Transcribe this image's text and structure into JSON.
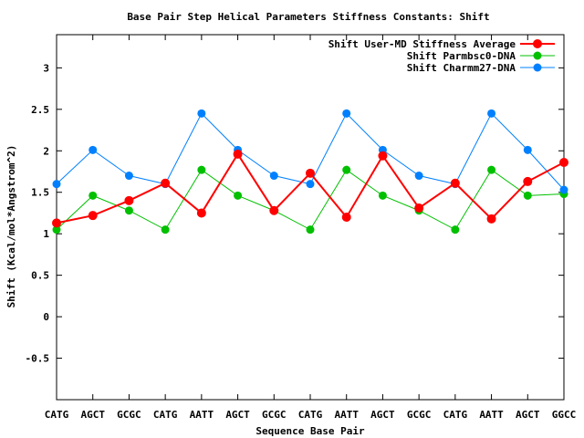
{
  "chart_data": {
    "type": "line",
    "title": "Base Pair Step Helical Parameters Stiffness Constants: Shift",
    "xlabel": "Sequence Base Pair",
    "ylabel": "Shift (Kcal/mol*Angstrom^2)",
    "categories": [
      "CATG",
      "AGCT",
      "GCGC",
      "CATG",
      "AATT",
      "AGCT",
      "GCGC",
      "CATG",
      "AATT",
      "AGCT",
      "GCGC",
      "CATG",
      "AATT",
      "AGCT",
      "GGCC"
    ],
    "ylim": [
      -1,
      3.4
    ],
    "yticks": [
      "-0.5",
      "0",
      "0.5",
      "1",
      "1.5",
      "2",
      "2.5",
      "3"
    ],
    "ytick_values": [
      -0.5,
      0,
      0.5,
      1,
      1.5,
      2,
      2.5,
      3
    ],
    "legend_position": "top-right",
    "grid": false,
    "series": [
      {
        "name": "Shift User-MD Stiffness Average",
        "color": "#ff0000",
        "values": [
          1.13,
          1.22,
          1.4,
          1.61,
          1.25,
          1.96,
          1.28,
          1.73,
          1.2,
          1.94,
          1.31,
          1.61,
          1.18,
          1.63,
          1.86
        ]
      },
      {
        "name": "Shift Parmbsc0-DNA",
        "color": "#00c000",
        "values": [
          1.05,
          1.46,
          1.28,
          1.05,
          1.77,
          1.46,
          1.28,
          1.05,
          1.77,
          1.46,
          1.28,
          1.05,
          1.77,
          1.46,
          1.48
        ]
      },
      {
        "name": "Shift Charmm27-DNA",
        "color": "#0080ff",
        "values": [
          1.6,
          2.01,
          1.7,
          1.6,
          2.45,
          2.01,
          1.7,
          1.6,
          2.45,
          2.01,
          1.7,
          1.6,
          2.45,
          2.01,
          1.53
        ]
      }
    ]
  }
}
